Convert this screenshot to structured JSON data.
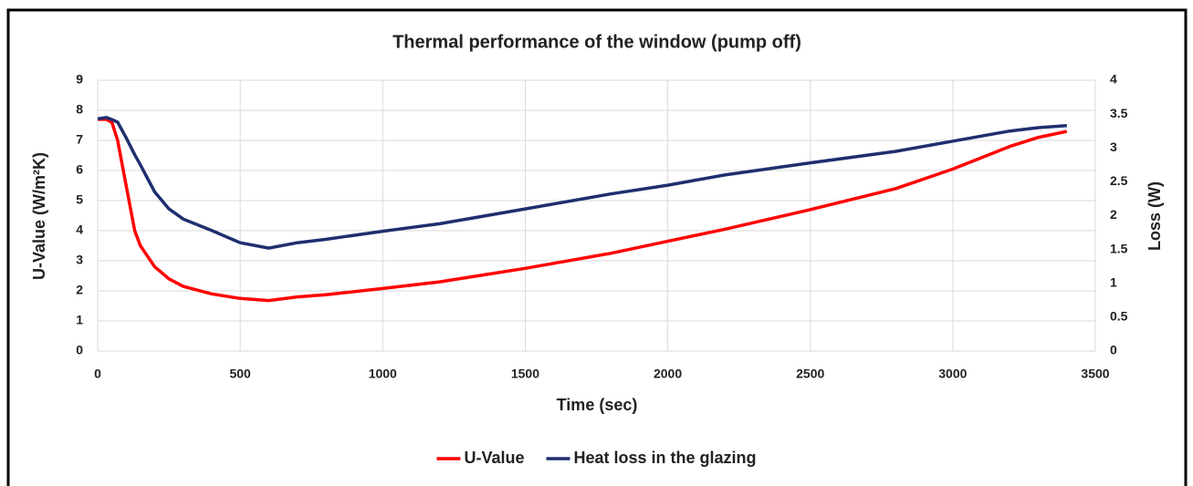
{
  "chart_data": {
    "type": "line",
    "title": "Thermal performance of the window (pump off)",
    "x_label": "Time (sec)",
    "y_label": "U-Value (W/m²K)",
    "y2_label": "Loss (W)",
    "x": [
      0,
      30,
      50,
      70,
      100,
      130,
      150,
      200,
      250,
      300,
      400,
      500,
      600,
      700,
      800,
      1000,
      1200,
      1500,
      1800,
      2000,
      2200,
      2500,
      2800,
      3000,
      3200,
      3300,
      3400
    ],
    "series": [
      {
        "name": "U-Value",
        "color": "#ff0000",
        "axis": "y",
        "values": [
          7.7,
          7.7,
          7.6,
          7.0,
          5.5,
          4.0,
          3.5,
          2.8,
          2.4,
          2.15,
          1.9,
          1.75,
          1.68,
          1.8,
          1.87,
          2.08,
          2.3,
          2.75,
          3.25,
          3.65,
          4.05,
          4.7,
          5.4,
          6.05,
          6.8,
          7.1,
          7.3
        ]
      },
      {
        "name": "Heat loss in the glazing",
        "color": "#1f2f6e",
        "axis": "y2",
        "values": [
          3.43,
          3.45,
          3.42,
          3.38,
          3.15,
          2.9,
          2.75,
          2.35,
          2.1,
          1.95,
          1.78,
          1.6,
          1.52,
          1.6,
          1.65,
          1.77,
          1.88,
          2.1,
          2.32,
          2.45,
          2.6,
          2.78,
          2.95,
          3.1,
          3.25,
          3.3,
          3.33
        ]
      }
    ],
    "xlim": [
      0,
      3500
    ],
    "xticks": [
      0,
      500,
      1000,
      1500,
      2000,
      2500,
      3000,
      3500
    ],
    "ylim": [
      0,
      9
    ],
    "yticks": [
      0,
      1,
      2,
      3,
      4,
      5,
      6,
      7,
      8,
      9
    ],
    "y2lim": [
      0,
      4
    ],
    "y2ticks": [
      0,
      0.5,
      1,
      1.5,
      2,
      2.5,
      3,
      3.5,
      4
    ],
    "grid": true,
    "legend": "bottom"
  }
}
